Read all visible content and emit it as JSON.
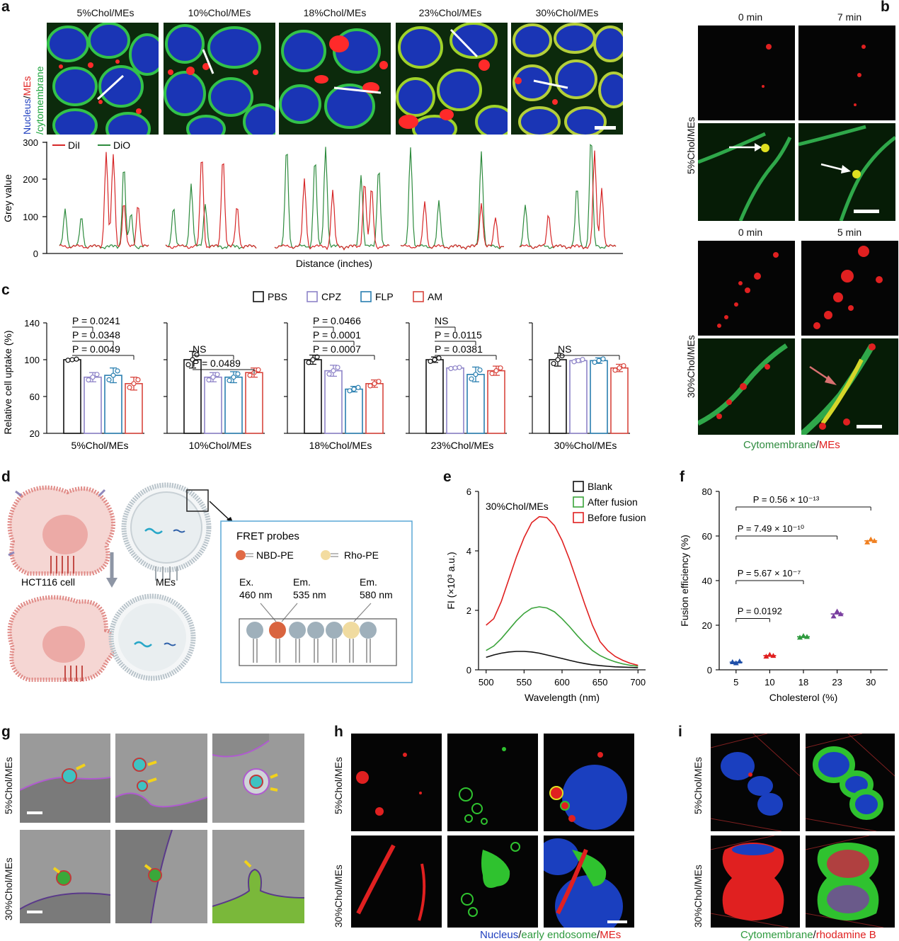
{
  "panels": {
    "a": "a",
    "b": "b",
    "c": "c",
    "d": "d",
    "e": "e",
    "f": "f",
    "g": "g",
    "h": "h",
    "i": "i"
  },
  "panel_a": {
    "conditions": [
      "5%Chol/MEs",
      "10%Chol/MEs",
      "18%Chol/MEs",
      "23%Chol/MEs",
      "30%Chol/MEs"
    ],
    "row_label_parts": [
      "Nucleus",
      "/",
      "MEs",
      "/cytomembrane"
    ],
    "colors": {
      "nucleus": "#1f3fbf",
      "mes": "#e02020",
      "membrane": "#1aa33a"
    },
    "legend": [
      "DiI",
      "DiO"
    ],
    "legend_colors": [
      "#d62728",
      "#2e8b3e"
    ],
    "ylabel": "Grey value",
    "xlabel": "Distance (inches)",
    "yticks": [
      "0",
      "100",
      "200",
      "300"
    ]
  },
  "panel_b": {
    "top_times": [
      "0 min",
      "7 min"
    ],
    "bottom_times": [
      "0 min",
      "5 min"
    ],
    "row_labels": [
      "5%Chol/MEs",
      "30%Chol/MEs"
    ],
    "caption_parts": [
      "Cytomembrane",
      "/",
      "MEs"
    ]
  },
  "panel_c": {
    "legend": [
      "PBS",
      "CPZ",
      "FLP",
      "AM"
    ],
    "legend_colors": [
      "#111111",
      "#8e84c8",
      "#2a7fb0",
      "#d9463e"
    ],
    "ylabel": "Relative cell uptake (%)",
    "yticks": [
      "20",
      "60",
      "100",
      "140"
    ],
    "groups": [
      "5%Chol/MEs",
      "10%Chol/MEs",
      "18%Chol/MEs",
      "23%Chol/MEs",
      "30%Chol/MEs"
    ],
    "annotations": [
      [
        "P = 0.0049",
        "P = 0.0348",
        "P = 0.0241"
      ],
      [
        "P = 0.0489",
        "NS"
      ],
      [
        "P = 0.0007",
        "P = 0.0001",
        "P = 0.0466"
      ],
      [
        "P = 0.0381",
        "P = 0.0115",
        "NS"
      ],
      [
        "NS"
      ]
    ]
  },
  "panel_d": {
    "cell_label": "HCT116 cell",
    "mes_label": "MEs",
    "fret_title": "FRET probes",
    "probe1": "NBD-PE",
    "probe2": "Rho-PE",
    "ex_label": "Ex.",
    "ex_val": "460 nm",
    "em1_label": "Em.",
    "em1_val": "535 nm",
    "em2_label": "Em.",
    "em2_val": "580 nm"
  },
  "panel_g": {
    "row_labels": [
      "5%Chol/MEs",
      "30%Chol/MEs"
    ]
  },
  "panel_h": {
    "row_labels": [
      "5%Chol/MEs",
      "30%Chol/MEs"
    ],
    "caption_parts": [
      "Nucleus",
      "/",
      "early endosome",
      "/",
      "MEs"
    ]
  },
  "panel_i": {
    "row_labels": [
      "5%Chol/MEs",
      "30%Chol/MEs"
    ],
    "caption_parts": [
      "Cytomembrane",
      "/",
      "rhodamine B"
    ]
  },
  "chart_data": [
    {
      "type": "bar",
      "panel": "c",
      "ylabel": "Relative cell uptake (%)",
      "ylim": [
        20,
        140
      ],
      "legend_placement": "top",
      "categories": [
        "5%Chol/MEs",
        "10%Chol/MEs",
        "18%Chol/MEs",
        "23%Chol/MEs",
        "30%Chol/MEs"
      ],
      "series": [
        {
          "name": "PBS",
          "values": [
            100,
            100,
            100,
            100,
            100
          ],
          "err": [
            1,
            9,
            5,
            3,
            7
          ]
        },
        {
          "name": "CPZ",
          "values": [
            81,
            81,
            88,
            91,
            99
          ],
          "err": [
            5,
            5,
            6,
            1,
            2
          ]
        },
        {
          "name": "FLP",
          "values": [
            83,
            81,
            68,
            84,
            99
          ],
          "err": [
            8,
            6,
            3,
            8,
            3
          ]
        },
        {
          "name": "AM",
          "values": [
            74,
            86,
            74,
            88,
            91
          ],
          "err": [
            7,
            5,
            4,
            5,
            4
          ]
        }
      ]
    },
    {
      "type": "line",
      "panel": "e",
      "title": "30%Chol/MEs",
      "xlabel": "Wavelength (nm)",
      "ylabel": "FI (×10³ a.u.)",
      "xlim": [
        490,
        710
      ],
      "ylim": [
        0,
        6
      ],
      "xticks": [
        500,
        550,
        600,
        650,
        700
      ],
      "yticks": [
        0,
        2,
        4,
        6
      ],
      "legend_placement": "top-right",
      "x": [
        500,
        510,
        520,
        530,
        540,
        550,
        560,
        570,
        580,
        590,
        600,
        610,
        620,
        630,
        640,
        650,
        660,
        670,
        680,
        690,
        700
      ],
      "series": [
        {
          "name": "Blank",
          "color": "#111111",
          "values": [
            0.42,
            0.5,
            0.56,
            0.6,
            0.62,
            0.62,
            0.6,
            0.56,
            0.5,
            0.44,
            0.38,
            0.32,
            0.26,
            0.21,
            0.17,
            0.14,
            0.12,
            0.1,
            0.09,
            0.08,
            0.07
          ]
        },
        {
          "name": "After fusion",
          "color": "#3aa33a",
          "values": [
            0.65,
            0.8,
            1.05,
            1.35,
            1.65,
            1.9,
            2.07,
            2.12,
            2.08,
            1.95,
            1.72,
            1.45,
            1.15,
            0.88,
            0.65,
            0.48,
            0.36,
            0.27,
            0.2,
            0.15,
            0.12
          ]
        },
        {
          "name": "Before fusion",
          "color": "#e02020",
          "values": [
            1.5,
            1.72,
            2.3,
            3.05,
            3.8,
            4.45,
            4.95,
            5.15,
            5.12,
            4.85,
            4.35,
            3.7,
            2.95,
            2.2,
            1.5,
            0.95,
            0.65,
            0.45,
            0.32,
            0.22,
            0.15
          ]
        }
      ]
    },
    {
      "type": "scatter",
      "panel": "f",
      "xlabel": "Cholesterol (%)",
      "ylabel": "Fusion efficiency (%)",
      "ylim": [
        0,
        80
      ],
      "yticks": [
        0,
        20,
        40,
        60,
        80
      ],
      "categories": [
        "5",
        "10",
        "18",
        "23",
        "30"
      ],
      "colors": [
        "#1f4fa8",
        "#e02020",
        "#2e9a3e",
        "#7a3fa0",
        "#f08020"
      ],
      "points": [
        [
          3.5,
          3.0,
          3.8
        ],
        [
          6.0,
          6.8,
          6.3
        ],
        [
          14.5,
          15.2,
          14.8
        ],
        [
          24.0,
          26.2,
          25.0
        ],
        [
          57.2,
          58.5,
          57.8
        ]
      ],
      "annotations": [
        "P = 0.0192",
        "P = 5.67 × 10⁻⁷",
        "P = 7.49 × 10⁻¹⁰",
        "P = 0.56 × 10⁻¹³"
      ]
    }
  ]
}
